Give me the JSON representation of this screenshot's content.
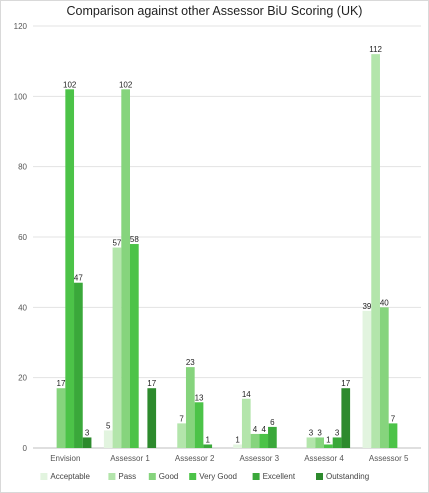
{
  "chart_data": {
    "type": "bar",
    "title": "Comparison against other Assessor BiU Scoring (UK)",
    "xlabel": "",
    "ylabel": "",
    "ylim": [
      0,
      120
    ],
    "yticks": [
      0,
      20,
      40,
      60,
      80,
      100,
      120
    ],
    "grid": true,
    "legend_position": "bottom",
    "categories": [
      "Envision",
      "Assessor 1",
      "Assessor 2",
      "Assessor 3",
      "Assessor 4",
      "Assessor 5"
    ],
    "series": [
      {
        "name": "Acceptable",
        "color": "#e2f4df",
        "values": [
          0,
          5,
          0,
          1,
          0,
          39
        ]
      },
      {
        "name": "Pass",
        "color": "#b3e5ab",
        "values": [
          0,
          57,
          7,
          14,
          3,
          112
        ]
      },
      {
        "name": "Good",
        "color": "#86d47d",
        "values": [
          17,
          102,
          23,
          4,
          3,
          40
        ]
      },
      {
        "name": "Very Good",
        "color": "#4cc348",
        "values": [
          102,
          58,
          13,
          4,
          1,
          7
        ]
      },
      {
        "name": "Excellent",
        "color": "#3aa83a",
        "values": [
          47,
          0,
          1,
          6,
          3,
          0
        ]
      },
      {
        "name": "Outstanding",
        "color": "#2d8a2d",
        "values": [
          3,
          17,
          0,
          0,
          17,
          0
        ]
      }
    ],
    "data_labels": [
      [
        "",
        "",
        "17",
        "102",
        "47",
        "3"
      ],
      [
        "5",
        "57",
        "102",
        "58",
        "",
        "17"
      ],
      [
        "",
        "7",
        "23",
        "13",
        "1",
        ""
      ],
      [
        "1",
        "14",
        "4",
        "4",
        "6",
        ""
      ],
      [
        "",
        "3",
        "3",
        "1",
        "3",
        "17"
      ],
      [
        "39",
        "112",
        "40",
        "7",
        "",
        ""
      ]
    ]
  }
}
